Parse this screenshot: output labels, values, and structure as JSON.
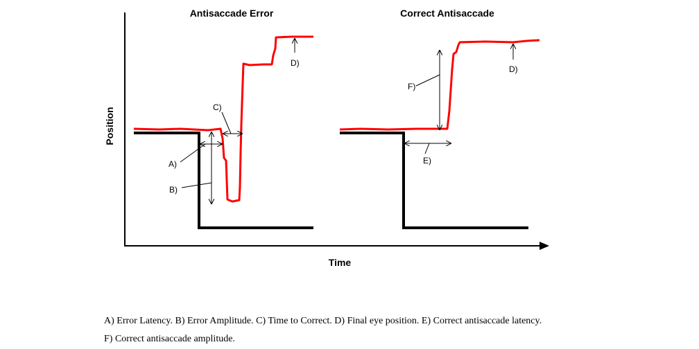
{
  "panels": {
    "left_title": "Antisaccade Error",
    "right_title": "Correct Antisaccade"
  },
  "axes": {
    "xlabel": "Time",
    "ylabel": "Position"
  },
  "annotations": {
    "a": "A)",
    "b": "B)",
    "c": "C)",
    "d_left": "D)",
    "d_right": "D)",
    "e": "E)",
    "f": "F)"
  },
  "caption": {
    "line1": "A) Error Latency. B) Error Amplitude. C) Time to Correct. D) Final eye position. E) Correct antisaccade latency.",
    "line2": "F) Correct antisaccade amplitude."
  },
  "colors": {
    "eye_trace": "#ff0000",
    "target": "#000000"
  }
}
